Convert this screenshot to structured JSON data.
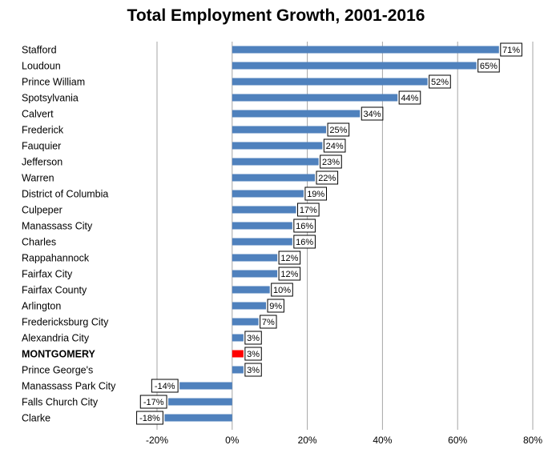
{
  "chart_data": {
    "type": "bar",
    "orientation": "horizontal",
    "title": "Total Employment Growth, 2001-2016",
    "categories": [
      "Stafford",
      "Loudoun",
      "Prince William",
      "Spotsylvania",
      "Calvert",
      "Frederick",
      "Fauquier",
      "Jefferson",
      "Warren",
      "District of Columbia",
      "Culpeper",
      "Manassass City",
      "Charles",
      "Rappahannock",
      "Fairfax City",
      "Fairfax County",
      "Arlington",
      "Fredericksburg City",
      "Alexandria City",
      "MONTGOMERY",
      "Prince George's",
      "Manassass Park City",
      "Falls Church City",
      "Clarke"
    ],
    "values": [
      71,
      65,
      52,
      44,
      34,
      25,
      24,
      23,
      22,
      19,
      17,
      16,
      16,
      12,
      12,
      10,
      9,
      7,
      3,
      3,
      3,
      -14,
      -17,
      -18
    ],
    "data_labels": [
      "71%",
      "65%",
      "52%",
      "44%",
      "34%",
      "25%",
      "24%",
      "23%",
      "22%",
      "19%",
      "17%",
      "16%",
      "16%",
      "12%",
      "12%",
      "10%",
      "9%",
      "7%",
      "3%",
      "3%",
      "3%",
      "-14%",
      "-17%",
      "-18%"
    ],
    "highlight_category": "MONTGOMERY",
    "xlim": [
      -20,
      80
    ],
    "x_ticks": [
      -20,
      0,
      20,
      40,
      60,
      80
    ],
    "x_tick_labels": [
      "-20%",
      "0%",
      "20%",
      "40%",
      "60%",
      "80%"
    ],
    "xlabel": "",
    "ylabel": "",
    "grid": "vertical",
    "legend": "none",
    "colors": {
      "bar": "#4f81bd",
      "highlight": "#ff0000",
      "grid": "#a6a6a6"
    }
  }
}
